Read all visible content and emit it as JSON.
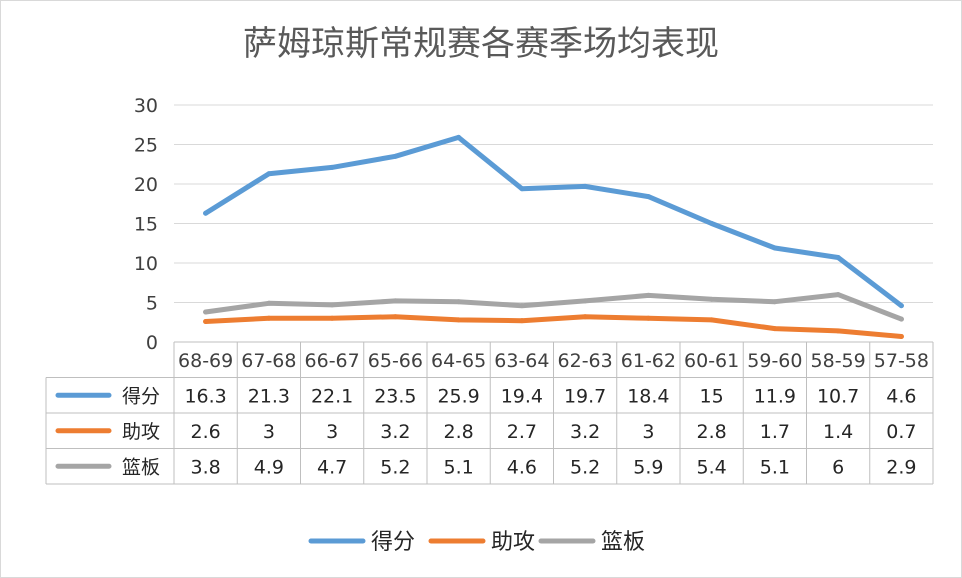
{
  "chart_data": {
    "type": "line",
    "title": "萨姆琼斯常规赛各赛季场均表现",
    "categories": [
      "68-69",
      "67-68",
      "66-67",
      "65-66",
      "64-65",
      "63-64",
      "62-63",
      "61-62",
      "60-61",
      "59-60",
      "58-59",
      "57-58"
    ],
    "series": [
      {
        "name": "得分",
        "color": "#5B9BD5",
        "values": [
          16.3,
          21.3,
          22.1,
          23.5,
          25.9,
          19.4,
          19.7,
          18.4,
          15,
          11.9,
          10.7,
          4.6
        ]
      },
      {
        "name": "助攻",
        "color": "#ED7D31",
        "values": [
          2.6,
          3,
          3,
          3.2,
          2.8,
          2.7,
          3.2,
          3,
          2.8,
          1.7,
          1.4,
          0.7
        ]
      },
      {
        "name": "篮板",
        "color": "#A5A5A5",
        "values": [
          3.8,
          4.9,
          4.7,
          5.2,
          5.1,
          4.6,
          5.2,
          5.9,
          5.4,
          5.1,
          6,
          2.9
        ]
      }
    ],
    "ylim": [
      0,
      30
    ],
    "yticks": [
      0,
      5,
      10,
      15,
      20,
      25,
      30
    ],
    "grid": true,
    "legend": "bottom"
  }
}
